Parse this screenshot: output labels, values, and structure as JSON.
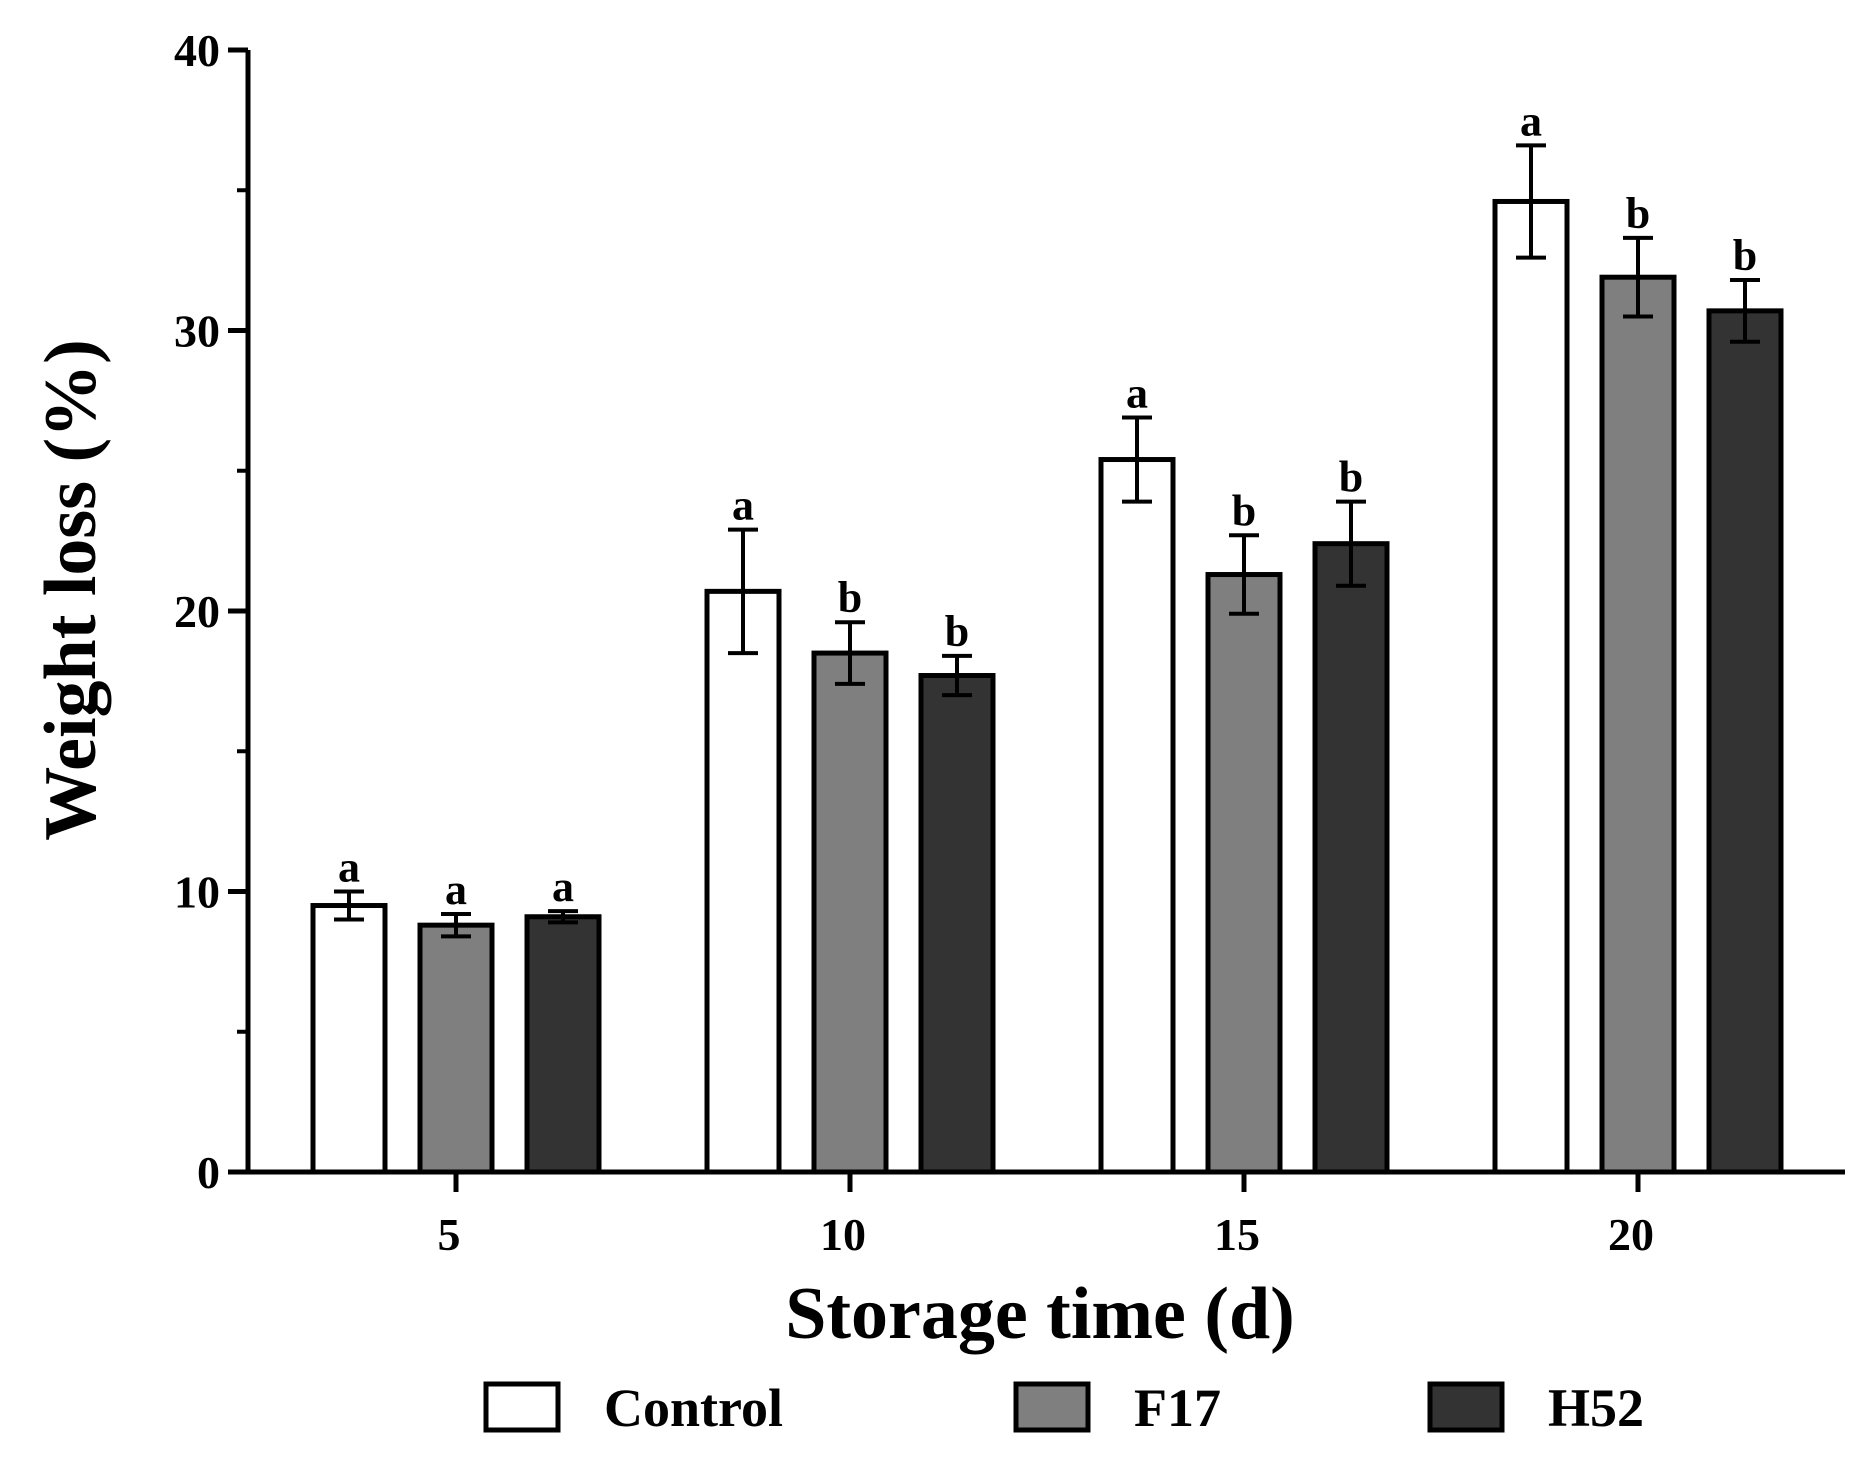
{
  "chart_data": {
    "type": "bar",
    "title": "",
    "xlabel": "Storage time (d)",
    "ylabel": "Weight loss (%)",
    "categories": [
      "5",
      "10",
      "15",
      "20"
    ],
    "ylim": [
      0,
      40
    ],
    "yticks_major": [
      0,
      10,
      20,
      30,
      40
    ],
    "yticks_minor": [
      5,
      15,
      25,
      35
    ],
    "legend_position": "bottom",
    "series": [
      {
        "name": "Control",
        "color": "#ffffff",
        "values": [
          9.5,
          20.7,
          25.4,
          34.6
        ],
        "errors": [
          0.5,
          2.2,
          1.5,
          2.0
        ],
        "significance": [
          "a",
          "a",
          "a",
          "a"
        ]
      },
      {
        "name": "F17",
        "color": "#7f7f7f",
        "values": [
          8.8,
          18.5,
          21.3,
          31.9
        ],
        "errors": [
          0.4,
          1.1,
          1.4,
          1.4
        ],
        "significance": [
          "a",
          "b",
          "b",
          "b"
        ]
      },
      {
        "name": "H52",
        "color": "#333333",
        "values": [
          9.1,
          17.7,
          22.4,
          30.7
        ],
        "errors": [
          0.2,
          0.7,
          1.5,
          1.1
        ],
        "significance": [
          "a",
          "b",
          "b",
          "b"
        ]
      }
    ]
  }
}
